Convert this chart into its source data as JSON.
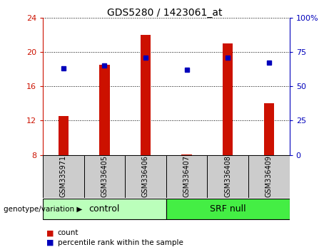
{
  "title": "GDS5280 / 1423061_at",
  "samples": [
    "GSM335971",
    "GSM336405",
    "GSM336406",
    "GSM336407",
    "GSM336408",
    "GSM336409"
  ],
  "counts": [
    12.5,
    18.5,
    22.0,
    8.1,
    21.0,
    14.0
  ],
  "percentile_ranks": [
    63,
    65,
    71,
    62,
    71,
    67
  ],
  "ylim_left": [
    8,
    24
  ],
  "ylim_right": [
    0,
    100
  ],
  "yticks_left": [
    8,
    12,
    16,
    20,
    24
  ],
  "yticks_right": [
    0,
    25,
    50,
    75,
    100
  ],
  "bar_color": "#cc1100",
  "dot_color": "#0000bb",
  "control_label": "control",
  "srf_label": "SRF null",
  "genotype_label": "genotype/variation",
  "legend_count": "count",
  "legend_percentile": "percentile rank within the sample",
  "control_color": "#bbffbb",
  "srf_color": "#44ee44",
  "tick_bg_color": "#cccccc",
  "left_axis_color": "#cc1100",
  "right_axis_color": "#0000bb",
  "n_control": 3,
  "n_srf": 3
}
